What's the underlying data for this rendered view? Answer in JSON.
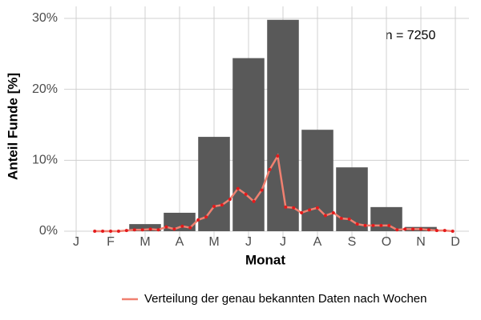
{
  "chart_data": {
    "type": "bar",
    "y_label": "Anteil Funde [%]",
    "x_label": "Monat",
    "annotation": "n = 7250",
    "categories": [
      "J",
      "F",
      "M",
      "A",
      "M",
      "J",
      "J",
      "A",
      "S",
      "O",
      "N",
      "D"
    ],
    "values": [
      0,
      0.1,
      1.0,
      2.6,
      13.3,
      24.4,
      29.8,
      14.3,
      9.0,
      3.4,
      0.6,
      0
    ],
    "color": "#595959",
    "line": {
      "name": "Verteilung der genau bekannten Daten nach Wochen",
      "color": "#f08070",
      "point_color": "#e41a1c",
      "values": [
        null,
        null,
        null,
        null,
        0,
        0,
        0,
        0,
        0.1,
        0.2,
        0.2,
        0.3,
        0.2,
        0.6,
        0.3,
        0.7,
        0.5,
        1.6,
        2.0,
        3.5,
        3.7,
        4.5,
        6.0,
        5.2,
        4.2,
        5.8,
        8.7,
        10.6,
        3.4,
        3.3,
        2.6,
        3.0,
        3.3,
        2.2,
        2.6,
        1.8,
        1.7,
        1.0,
        0.8,
        0.8,
        0.8,
        0.8,
        0.2,
        0.3,
        0.3,
        0.3,
        0.2,
        0.1,
        0.1,
        0,
        null,
        null
      ]
    },
    "ylim": [
      0,
      30
    ],
    "yticks": [
      {
        "value": 0,
        "label": "0%"
      },
      {
        "value": 10,
        "label": "10%"
      },
      {
        "value": 20,
        "label": "20%"
      },
      {
        "value": 30,
        "label": "30%"
      }
    ],
    "grid": true,
    "legend_position": "bottom"
  }
}
